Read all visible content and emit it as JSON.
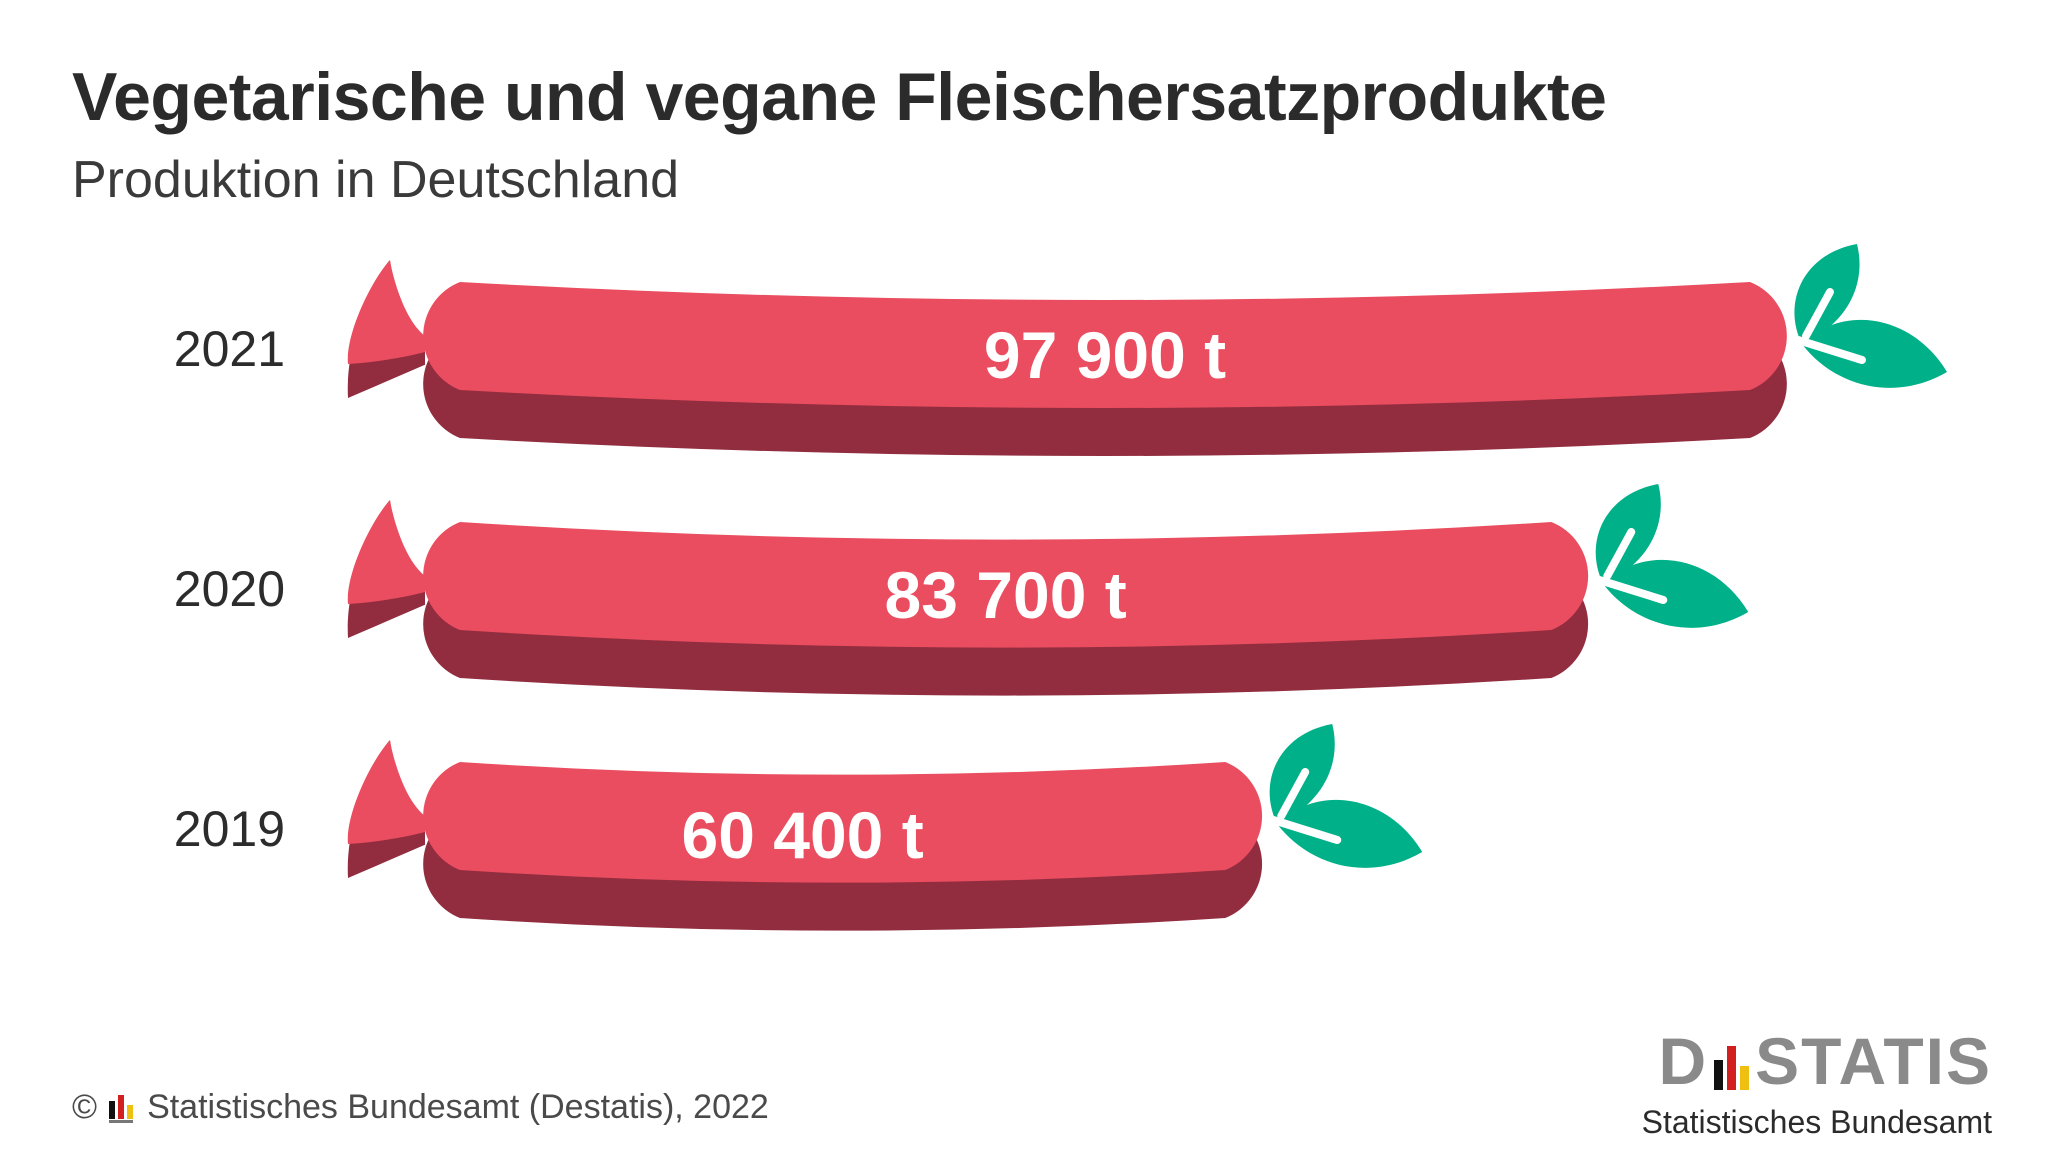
{
  "title": "Vegetarische und vegane Fleischersatzprodukte",
  "subtitle": "Produktion in Deutschland",
  "colors": {
    "sausage_top": "#ea4d5f",
    "sausage_shadow": "#922d3f",
    "leaf": "#00b088",
    "value_text": "#ffffff",
    "year_text": "#2c2c2c"
  },
  "chart_data": {
    "type": "bar",
    "orientation": "horizontal",
    "categories": [
      "2021",
      "2020",
      "2019"
    ],
    "values": [
      97900,
      83700,
      60400
    ],
    "value_labels": [
      "97 900 t",
      "83 700 t",
      "60 400 t"
    ],
    "unit": "t",
    "title": "Vegetarische und vegane Fleischersatzprodukte",
    "subtitle": "Produktion in Deutschland"
  },
  "footer": {
    "copyright_symbol": "©",
    "source": "Statistisches Bundesamt (Destatis), 2022"
  },
  "brand": {
    "word_left": "D",
    "word_right": "STATIS",
    "subline": "Statistisches Bundesamt"
  }
}
